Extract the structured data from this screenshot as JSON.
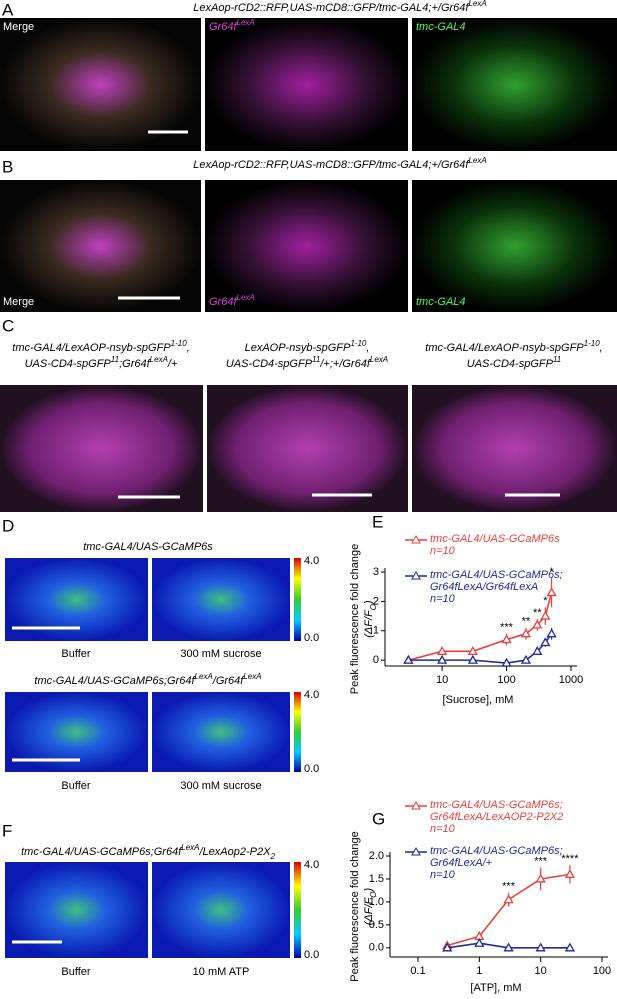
{
  "panels": [
    {
      "letter": "A",
      "title": [
        "LexAop-rCD2::RFP,UAS-mCD8::GFP/tmc-GAL4;+/Gr64f",
        {
          "sup": "LexA"
        }
      ],
      "labels": [
        [
          "Merge"
        ],
        [
          "Gr64f",
          {
            "sup": "LexA"
          }
        ],
        [
          "tmc-GAL4"
        ]
      ]
    },
    {
      "letter": "B",
      "title": [
        "LexAop-rCD2::RFP,UAS-mCD8::GFP/tmc-GAL4;+/Gr64f",
        {
          "sup": "LexA"
        }
      ],
      "labels": [
        [
          "Merge"
        ],
        [
          "Gr64f",
          {
            "sup": "LexA"
          }
        ],
        [
          "tmc-GAL4"
        ]
      ]
    },
    {
      "letter": "C",
      "labels": [
        [
          [
            "tmc-GAL4/LexAOP-nsyb-spGFP",
            {
              "sup": "1-10"
            },
            ","
          ],
          [
            "UAS-CD4-spGFP",
            {
              "sup": "11"
            },
            ";Gr64f",
            {
              "sup": "LexA"
            },
            "/+"
          ]
        ],
        [
          [
            "LexAOP-nsyb-spGFP",
            {
              "sup": "1-10"
            },
            ","
          ],
          [
            "UAS-CD4-spGFP",
            {
              "sup": "11"
            },
            "/+;+/Gr64f",
            {
              "sup": "LexA"
            }
          ]
        ],
        [
          [
            "tmc-GAL4/LexAOP-nsyb-spGFP",
            {
              "sup": "1-10"
            },
            ","
          ],
          [
            "UAS-CD4-spGFP",
            {
              "sup": "11"
            }
          ]
        ]
      ]
    },
    {
      "letter": "D",
      "groups": [
        {
          "title": [
            "tmc-GAL4/UAS-GCaMP6s"
          ],
          "captions": [
            "Buffer",
            "300 mM sucrose"
          ]
        },
        {
          "title": [
            "tmc-GAL4/UAS-GCaMP6s;Gr64f",
            {
              "sup": "LexA"
            },
            "/Gr64f",
            {
              "sup": "LexA"
            }
          ],
          "captions": [
            "Buffer",
            "300 mM sucrose"
          ]
        }
      ],
      "colorbar": [
        "4.0",
        "0.0"
      ]
    },
    {
      "letter": "F",
      "groups": [
        {
          "title": [
            "tmc-GAL4/UAS-GCaMP6s;Gr64f",
            {
              "sup": "LexA"
            },
            "/LexAop2-P2X",
            {
              "sub": "2"
            }
          ],
          "captions": [
            "Buffer",
            "10 mM ATP"
          ]
        }
      ],
      "colorbar": [
        "4.0",
        "0.0"
      ]
    }
  ],
  "chart_data": [
    {
      "type": "line",
      "letter": "E",
      "xlabel": "[Sucrose], mM",
      "ylabel": "Peak fluorescence fold change",
      "ylabel2": [
        "(ΔF/F",
        {
          "sub": "O"
        },
        ")"
      ],
      "xscale": "log",
      "xlim": [
        1.3,
        1000
      ],
      "xticks": [
        10,
        100,
        1000
      ],
      "ylim": [
        -0.2,
        3
      ],
      "yticks": [
        0,
        1,
        2,
        3
      ],
      "series": [
        {
          "name": "tmc-GAL4/UAS-GCaMP6s",
          "n": "n=10",
          "color": "#e8413c",
          "x": [
            3,
            10,
            30,
            100,
            200,
            300,
            400,
            500
          ],
          "values": [
            0,
            0.3,
            0.3,
            0.7,
            0.9,
            1.2,
            1.5,
            2.3
          ],
          "errors": [
            0.05,
            0.1,
            0.1,
            0.2,
            0.2,
            0.2,
            0.3,
            0.5
          ]
        },
        {
          "name": "tmc-GAL4/UAS-GCaMP6s; Gr64fLexA/Gr64fLexA",
          "n": "n=10",
          "color": "#1f2a9c",
          "x": [
            3,
            10,
            30,
            100,
            200,
            300,
            400,
            500
          ],
          "values": [
            0,
            0,
            0,
            -0.1,
            0,
            0.3,
            0.6,
            0.9
          ],
          "errors": [
            0.03,
            0.03,
            0.03,
            0.05,
            0.05,
            0.1,
            0.15,
            0.2
          ]
        }
      ],
      "annotations": [
        {
          "x": 100,
          "label": "***"
        },
        {
          "x": 200,
          "label": "**"
        },
        {
          "x": 300,
          "label": "**"
        },
        {
          "x": 400,
          "label": "*"
        },
        {
          "x": 500,
          "label": "*"
        }
      ]
    },
    {
      "type": "line",
      "letter": "G",
      "xlabel": "[ATP], mM",
      "ylabel": "Peak fluorescence fold change",
      "ylabel2": [
        "(ΔF/F",
        {
          "sub": "O"
        },
        ")"
      ],
      "xscale": "log",
      "xlim": [
        0.035,
        100
      ],
      "xticks": [
        0.1,
        1,
        10,
        100
      ],
      "ylim": [
        -0.2,
        2
      ],
      "yticks": [
        {
          "value": 0,
          "label": "0.0"
        },
        {
          "value": 0.5,
          "label": "0.5"
        },
        {
          "value": 1,
          "label": "1.0"
        },
        {
          "value": 1.5,
          "label": "1.5"
        },
        {
          "value": 2,
          "label": "2.0"
        }
      ],
      "series": [
        {
          "name": "tmc-GAL4/UAS-GCaMP6s; Gr64fLexA/LexAOP2-P2X2",
          "n": "n=10",
          "color": "#e8413c",
          "x": [
            0.3,
            1,
            3,
            10,
            30
          ],
          "values": [
            0.05,
            0.25,
            1.05,
            1.5,
            1.6
          ],
          "errors": [
            0.05,
            0.1,
            0.15,
            0.25,
            0.2
          ]
        },
        {
          "name": "tmc-GAL4/UAS-GCaMP6s; Gr64fLexA/+",
          "n": "n=10",
          "color": "#1f2a9c",
          "x": [
            0.3,
            1,
            3,
            10,
            30
          ],
          "values": [
            0,
            0.1,
            0,
            0,
            0
          ],
          "errors": [
            0.02,
            0.05,
            0.02,
            0.02,
            0.02
          ]
        }
      ],
      "annotations": [
        {
          "x": 3,
          "label": "***"
        },
        {
          "x": 10,
          "label": "***"
        },
        {
          "x": 30,
          "label": "****"
        }
      ]
    }
  ]
}
